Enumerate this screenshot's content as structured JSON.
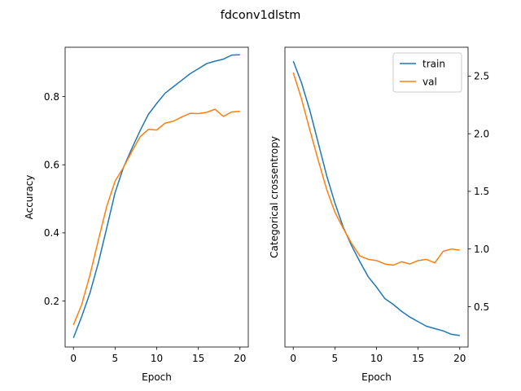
{
  "figure": {
    "title": "fdconv1dlstm"
  },
  "chart_data": [
    {
      "type": "line",
      "xlabel": "Epoch",
      "ylabel": "Accuracy",
      "xlim": [
        -1,
        21
      ],
      "ylim": [
        0.065,
        0.945
      ],
      "xticks": [
        0,
        5,
        10,
        15,
        20
      ],
      "yticks": [
        0.2,
        0.4,
        0.6,
        0.8
      ],
      "ytick_labels": [
        "0.2",
        "0.4",
        "0.6",
        "0.8"
      ],
      "y_axis_side": "left",
      "x": [
        0,
        1,
        2,
        3,
        4,
        5,
        6,
        7,
        8,
        9,
        10,
        11,
        12,
        13,
        14,
        15,
        16,
        17,
        18,
        19,
        20
      ],
      "series": [
        {
          "name": "train",
          "color": "#1f77b4",
          "values": [
            0.092,
            0.155,
            0.225,
            0.313,
            0.415,
            0.518,
            0.592,
            0.647,
            0.7,
            0.748,
            0.78,
            0.81,
            0.829,
            0.848,
            0.867,
            0.882,
            0.897,
            0.904,
            0.91,
            0.922,
            0.923
          ]
        },
        {
          "name": "val",
          "color": "#ff7f0e",
          "values": [
            0.13,
            0.19,
            0.278,
            0.38,
            0.478,
            0.552,
            0.592,
            0.638,
            0.682,
            0.704,
            0.702,
            0.722,
            0.728,
            0.74,
            0.751,
            0.75,
            0.754,
            0.763,
            0.742,
            0.755,
            0.757
          ]
        }
      ]
    },
    {
      "type": "line",
      "xlabel": "Epoch",
      "ylabel": "Categorical crossentropy",
      "xlim": [
        -1,
        21
      ],
      "ylim": [
        0.15,
        2.75
      ],
      "xticks": [
        0,
        5,
        10,
        15,
        20
      ],
      "yticks": [
        0.5,
        1.0,
        1.5,
        2.0,
        2.5
      ],
      "ytick_labels": [
        "0.5",
        "1.0",
        "1.5",
        "2.0",
        "2.5"
      ],
      "y_axis_side": "right",
      "legend": "top-right",
      "x": [
        0,
        1,
        2,
        3,
        4,
        5,
        6,
        7,
        8,
        9,
        10,
        11,
        12,
        13,
        14,
        15,
        16,
        17,
        18,
        19,
        20
      ],
      "series": [
        {
          "name": "train",
          "color": "#1f77b4",
          "values": [
            2.63,
            2.44,
            2.2,
            1.92,
            1.64,
            1.4,
            1.19,
            1.03,
            0.89,
            0.76,
            0.67,
            0.57,
            0.52,
            0.46,
            0.41,
            0.37,
            0.33,
            0.31,
            0.29,
            0.26,
            0.25
          ]
        },
        {
          "name": "val",
          "color": "#ff7f0e",
          "values": [
            2.53,
            2.3,
            2.03,
            1.77,
            1.52,
            1.32,
            1.18,
            1.05,
            0.94,
            0.91,
            0.9,
            0.87,
            0.86,
            0.89,
            0.87,
            0.9,
            0.91,
            0.88,
            0.98,
            1.0,
            0.99
          ]
        }
      ]
    }
  ]
}
